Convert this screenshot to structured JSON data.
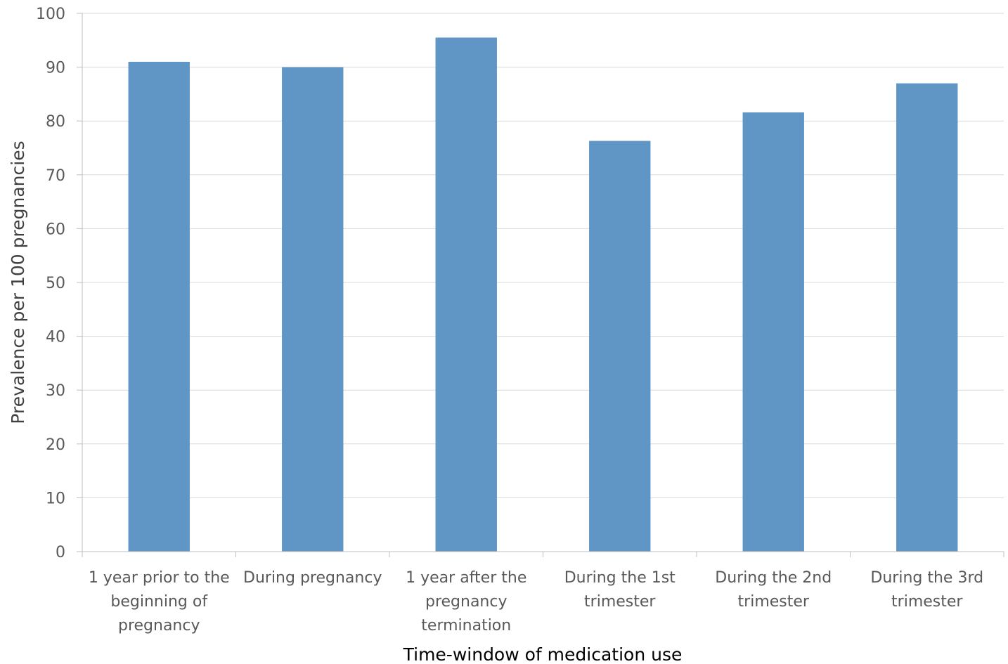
{
  "chart_data": {
    "type": "bar",
    "categories": [
      [
        "1 year prior to the",
        "beginning of",
        "pregnancy"
      ],
      [
        "During pregnancy"
      ],
      [
        "1 year after the",
        "pregnancy",
        "termination"
      ],
      [
        "During the 1st",
        "trimester"
      ],
      [
        "During the 2nd",
        "trimester"
      ],
      [
        "During the 3rd",
        "trimester"
      ]
    ],
    "values": [
      91,
      90,
      95.5,
      76.3,
      81.6,
      87
    ],
    "xlabel": "Time-window of medication use",
    "ylabel": "Prevalence  per 100 pregnancies",
    "ylim": [
      0,
      100
    ],
    "yticks": [
      0,
      10,
      20,
      30,
      40,
      50,
      60,
      70,
      80,
      90,
      100
    ],
    "grid": true,
    "colors": {
      "bar": "#6096c6",
      "grid": "#d9d9d9",
      "axis": "#bfbfbf"
    }
  }
}
